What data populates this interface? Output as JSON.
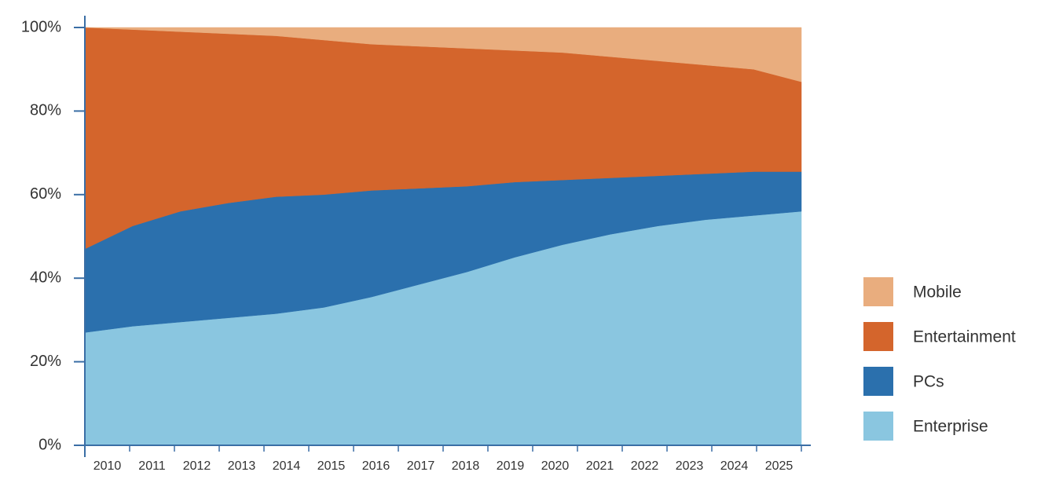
{
  "chart_data": {
    "type": "stacked_area",
    "categories": [
      "2010",
      "2011",
      "2012",
      "2013",
      "2014",
      "2015",
      "2016",
      "2017",
      "2018",
      "2019",
      "2020",
      "2021",
      "2022",
      "2023",
      "2024",
      "2025"
    ],
    "series": [
      {
        "name": "Enterprise",
        "color": "#8ac6e0",
        "values": [
          27,
          28.5,
          29.5,
          30.5,
          31.5,
          33,
          35.5,
          38.5,
          41.5,
          45,
          48,
          50.5,
          52.5,
          54,
          55,
          56
        ]
      },
      {
        "name": "PCs",
        "color": "#2b70ad",
        "values": [
          20,
          24,
          26.5,
          27.5,
          28,
          27,
          25.5,
          23,
          20.5,
          18,
          15.5,
          13.5,
          12,
          11,
          10.5,
          9.5
        ]
      },
      {
        "name": "Entertainment",
        "color": "#d4652c",
        "values": [
          53,
          47,
          43,
          40.5,
          38.5,
          37,
          35,
          34,
          33,
          31.5,
          30.5,
          29,
          27.5,
          26,
          24.5,
          21.5
        ]
      },
      {
        "name": "Mobile",
        "color": "#e9ad7e",
        "values": [
          0,
          0.5,
          1,
          1.5,
          2,
          3,
          4,
          4.5,
          5,
          5.5,
          6,
          7,
          8,
          9,
          10,
          13
        ]
      }
    ],
    "ylim": [
      0,
      100
    ],
    "yticks": [
      {
        "value": 0,
        "label": "0%"
      },
      {
        "value": 20,
        "label": "20%"
      },
      {
        "value": 40,
        "label": "40%"
      },
      {
        "value": 60,
        "label": "60%"
      },
      {
        "value": 80,
        "label": "80%"
      },
      {
        "value": 100,
        "label": "100%"
      }
    ],
    "legend": "right"
  }
}
